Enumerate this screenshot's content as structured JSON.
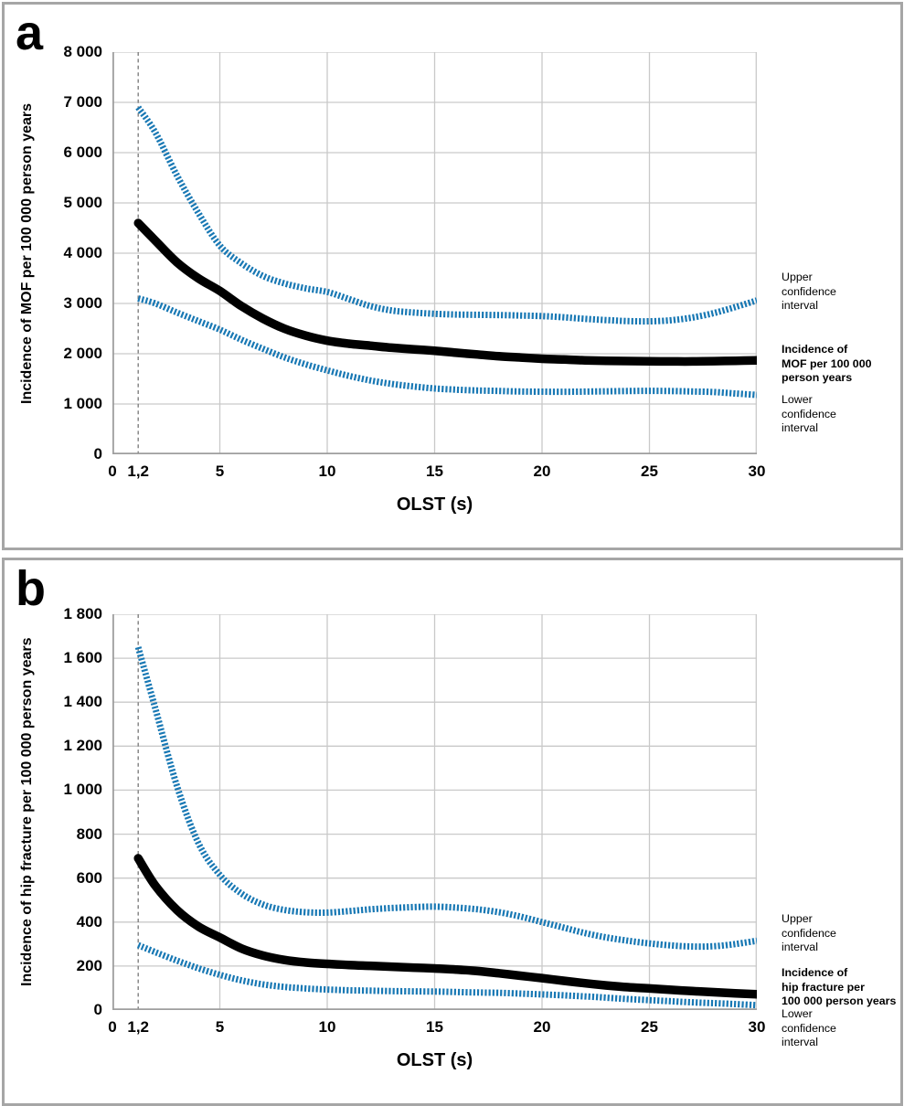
{
  "style": {
    "ci_color": "#1878b4",
    "main_color": "#000000",
    "grid_color": "#c9c9c9",
    "axis_color": "#9e9e9e",
    "ref_line_color": "#7f7f7f",
    "panel_border_color": "#a6a6a6"
  },
  "chart_data": [
    {
      "type": "line",
      "panel_label": "a",
      "xlabel": "OLST (s)",
      "ylabel": "Incidence of MOF per 100 000 person years",
      "xlim": [
        0,
        30
      ],
      "ylim": [
        0,
        8000
      ],
      "grid": true,
      "legend_position": "right",
      "x_ticks": [
        {
          "v": 0,
          "label": "0"
        },
        {
          "v": 1.2,
          "label": "1,2"
        },
        {
          "v": 5,
          "label": "5"
        },
        {
          "v": 10,
          "label": "10"
        },
        {
          "v": 15,
          "label": "15"
        },
        {
          "v": 20,
          "label": "20"
        },
        {
          "v": 25,
          "label": "25"
        },
        {
          "v": 30,
          "label": "30"
        }
      ],
      "y_ticks": [
        {
          "v": 0,
          "label": "0"
        },
        {
          "v": 1000,
          "label": "1 000"
        },
        {
          "v": 2000,
          "label": "2 000"
        },
        {
          "v": 3000,
          "label": "3 000"
        },
        {
          "v": 4000,
          "label": "4 000"
        },
        {
          "v": 5000,
          "label": "5 000"
        },
        {
          "v": 6000,
          "label": "6 000"
        },
        {
          "v": 7000,
          "label": "7 000"
        },
        {
          "v": 8000,
          "label": "8 000"
        }
      ],
      "x_gridlines": [
        5,
        10,
        15,
        20,
        25,
        30
      ],
      "reference_line": {
        "x": 1.2,
        "style": "dashed"
      },
      "series": [
        {
          "key": "upper_ci",
          "name": "Upper confidence interval",
          "style": "dashed",
          "color": "#1878b4",
          "points": [
            [
              1.2,
              6900
            ],
            [
              2,
              6400
            ],
            [
              3,
              5550
            ],
            [
              4,
              4800
            ],
            [
              5,
              4150
            ],
            [
              6,
              3800
            ],
            [
              7,
              3550
            ],
            [
              8,
              3400
            ],
            [
              9,
              3300
            ],
            [
              10,
              3230
            ],
            [
              11,
              3090
            ],
            [
              12,
              2950
            ],
            [
              13,
              2860
            ],
            [
              14,
              2820
            ],
            [
              15,
              2795
            ],
            [
              16,
              2780
            ],
            [
              17,
              2775
            ],
            [
              18,
              2770
            ],
            [
              19,
              2760
            ],
            [
              20,
              2750
            ],
            [
              21,
              2725
            ],
            [
              22,
              2695
            ],
            [
              23,
              2670
            ],
            [
              24,
              2650
            ],
            [
              25,
              2645
            ],
            [
              26,
              2665
            ],
            [
              27,
              2720
            ],
            [
              28,
              2810
            ],
            [
              29,
              2930
            ],
            [
              30,
              3060
            ]
          ]
        },
        {
          "key": "main",
          "name": "Incidence of MOF per 100 000 person years",
          "style": "solid",
          "color": "#000000",
          "points": [
            [
              1.2,
              4600
            ],
            [
              2,
              4250
            ],
            [
              3,
              3820
            ],
            [
              4,
              3500
            ],
            [
              5,
              3250
            ],
            [
              6,
              2950
            ],
            [
              7,
              2700
            ],
            [
              8,
              2500
            ],
            [
              9,
              2360
            ],
            [
              10,
              2260
            ],
            [
              11,
              2200
            ],
            [
              12,
              2160
            ],
            [
              13,
              2120
            ],
            [
              14,
              2090
            ],
            [
              15,
              2060
            ],
            [
              16,
              2020
            ],
            [
              17,
              1985
            ],
            [
              18,
              1950
            ],
            [
              19,
              1925
            ],
            [
              20,
              1900
            ],
            [
              21,
              1885
            ],
            [
              22,
              1870
            ],
            [
              23,
              1860
            ],
            [
              24,
              1855
            ],
            [
              25,
              1850
            ],
            [
              26,
              1848
            ],
            [
              27,
              1848
            ],
            [
              28,
              1852
            ],
            [
              29,
              1860
            ],
            [
              30,
              1870
            ]
          ]
        },
        {
          "key": "lower_ci",
          "name": "Lower confidence interval",
          "style": "dashed",
          "color": "#1878b4",
          "points": [
            [
              1.2,
              3100
            ],
            [
              2,
              3000
            ],
            [
              3,
              2820
            ],
            [
              4,
              2650
            ],
            [
              5,
              2480
            ],
            [
              6,
              2280
            ],
            [
              7,
              2100
            ],
            [
              8,
              1930
            ],
            [
              9,
              1790
            ],
            [
              10,
              1670
            ],
            [
              11,
              1560
            ],
            [
              12,
              1470
            ],
            [
              13,
              1400
            ],
            [
              14,
              1350
            ],
            [
              15,
              1310
            ],
            [
              16,
              1285
            ],
            [
              17,
              1270
            ],
            [
              18,
              1260
            ],
            [
              19,
              1250
            ],
            [
              20,
              1245
            ],
            [
              21,
              1243
            ],
            [
              22,
              1248
            ],
            [
              23,
              1253
            ],
            [
              24,
              1258
            ],
            [
              25,
              1262
            ],
            [
              26,
              1258
            ],
            [
              27,
              1250
            ],
            [
              28,
              1238
            ],
            [
              29,
              1210
            ],
            [
              30,
              1180
            ]
          ]
        }
      ],
      "annotations": [
        {
          "text": "Upper\nconfidence\ninterval",
          "bold": false
        },
        {
          "text": "Incidence of\nMOF per 100 000\nperson years",
          "bold": true
        },
        {
          "text": "Lower\nconfidence\ninterval",
          "bold": false
        }
      ]
    },
    {
      "type": "line",
      "panel_label": "b",
      "xlabel": "OLST (s)",
      "ylabel": "Incidence of hip fracture per 100 000 person years",
      "xlim": [
        0,
        30
      ],
      "ylim": [
        0,
        1800
      ],
      "grid": true,
      "legend_position": "right",
      "x_ticks": [
        {
          "v": 0,
          "label": "0"
        },
        {
          "v": 1.2,
          "label": "1,2"
        },
        {
          "v": 5,
          "label": "5"
        },
        {
          "v": 10,
          "label": "10"
        },
        {
          "v": 15,
          "label": "15"
        },
        {
          "v": 20,
          "label": "20"
        },
        {
          "v": 25,
          "label": "25"
        },
        {
          "v": 30,
          "label": "30"
        }
      ],
      "y_ticks": [
        {
          "v": 0,
          "label": "0"
        },
        {
          "v": 200,
          "label": "200"
        },
        {
          "v": 400,
          "label": "400"
        },
        {
          "v": 600,
          "label": "600"
        },
        {
          "v": 800,
          "label": "800"
        },
        {
          "v": 1000,
          "label": "1 000"
        },
        {
          "v": 1200,
          "label": "1 200"
        },
        {
          "v": 1400,
          "label": "1 400"
        },
        {
          "v": 1600,
          "label": "1 600"
        },
        {
          "v": 1800,
          "label": "1 800"
        }
      ],
      "x_gridlines": [
        5,
        10,
        15,
        20,
        25,
        30
      ],
      "reference_line": {
        "x": 1.2,
        "style": "dashed"
      },
      "series": [
        {
          "key": "upper_ci",
          "name": "Upper confidence interval",
          "style": "dashed",
          "color": "#1878b4",
          "points": [
            [
              1.2,
              1650
            ],
            [
              2,
              1370
            ],
            [
              3,
              1020
            ],
            [
              4,
              760
            ],
            [
              5,
              615
            ],
            [
              6,
              530
            ],
            [
              7,
              480
            ],
            [
              8,
              455
            ],
            [
              9,
              445
            ],
            [
              10,
              443
            ],
            [
              11,
              450
            ],
            [
              12,
              458
            ],
            [
              13,
              464
            ],
            [
              14,
              468
            ],
            [
              15,
              470
            ],
            [
              16,
              466
            ],
            [
              17,
              458
            ],
            [
              18,
              445
            ],
            [
              19,
              425
            ],
            [
              20,
              400
            ],
            [
              21,
              375
            ],
            [
              22,
              350
            ],
            [
              23,
              330
            ],
            [
              24,
              315
            ],
            [
              25,
              303
            ],
            [
              26,
              294
            ],
            [
              27,
              289
            ],
            [
              28,
              290
            ],
            [
              29,
              300
            ],
            [
              30,
              315
            ]
          ]
        },
        {
          "key": "main",
          "name": "Incidence of hip fracture per 100 000 person years",
          "style": "solid",
          "color": "#000000",
          "points": [
            [
              1.2,
              690
            ],
            [
              2,
              565
            ],
            [
              3,
              455
            ],
            [
              4,
              380
            ],
            [
              5,
              330
            ],
            [
              6,
              280
            ],
            [
              7,
              248
            ],
            [
              8,
              228
            ],
            [
              9,
              216
            ],
            [
              10,
              210
            ],
            [
              11,
              205
            ],
            [
              12,
              201
            ],
            [
              13,
              197
            ],
            [
              14,
              193
            ],
            [
              15,
              189
            ],
            [
              16,
              184
            ],
            [
              17,
              177
            ],
            [
              18,
              167
            ],
            [
              19,
              156
            ],
            [
              20,
              145
            ],
            [
              21,
              133
            ],
            [
              22,
              122
            ],
            [
              23,
              112
            ],
            [
              24,
              104
            ],
            [
              25,
              98
            ],
            [
              26,
              92
            ],
            [
              27,
              86
            ],
            [
              28,
              81
            ],
            [
              29,
              76
            ],
            [
              30,
              72
            ]
          ]
        },
        {
          "key": "lower_ci",
          "name": "Lower confidence interval",
          "style": "dashed",
          "color": "#1878b4",
          "points": [
            [
              1.2,
              295
            ],
            [
              2,
              263
            ],
            [
              3,
              225
            ],
            [
              4,
              190
            ],
            [
              5,
              160
            ],
            [
              6,
              135
            ],
            [
              7,
              117
            ],
            [
              8,
              105
            ],
            [
              9,
              98
            ],
            [
              10,
              93
            ],
            [
              11,
              90
            ],
            [
              12,
              88
            ],
            [
              13,
              86
            ],
            [
              14,
              85
            ],
            [
              15,
              84
            ],
            [
              16,
              82
            ],
            [
              17,
              80
            ],
            [
              18,
              78
            ],
            [
              19,
              75
            ],
            [
              20,
              71
            ],
            [
              21,
              67
            ],
            [
              22,
              62
            ],
            [
              23,
              56
            ],
            [
              24,
              50
            ],
            [
              25,
              45
            ],
            [
              26,
              40
            ],
            [
              27,
              35
            ],
            [
              28,
              31
            ],
            [
              29,
              27
            ],
            [
              30,
              22
            ]
          ]
        }
      ],
      "annotations": [
        {
          "text": "Upper\nconfidence\ninterval",
          "bold": false
        },
        {
          "text": "Incidence of\nhip fracture per\n100 000 person years",
          "bold": true
        },
        {
          "text": "Lower\nconfidence\ninterval",
          "bold": false
        }
      ]
    }
  ]
}
